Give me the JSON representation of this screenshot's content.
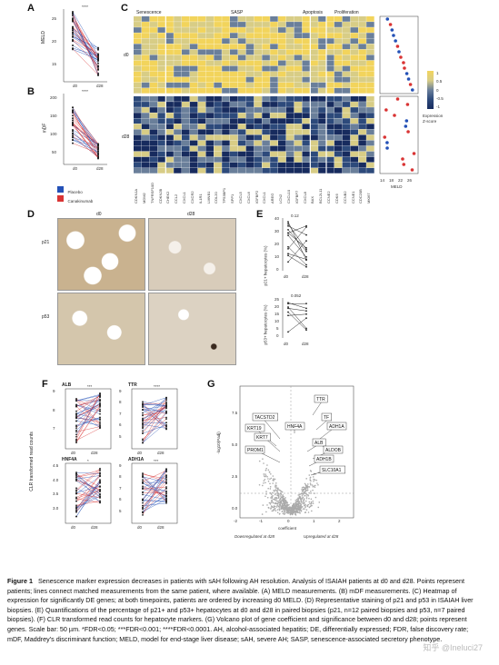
{
  "panel_labels": {
    "A": "A",
    "B": "B",
    "C": "C",
    "D": "D",
    "E": "E",
    "F": "F",
    "G": "G"
  },
  "panelA": {
    "ylabel": "MELD",
    "ticks": [
      "25",
      "20",
      "15"
    ],
    "x": [
      "d0",
      "d28"
    ],
    "sig": "****"
  },
  "panelB": {
    "ylabel": "mDF",
    "ticks": [
      "200",
      "150",
      "100",
      "50"
    ],
    "x": [
      "d0",
      "d28"
    ],
    "sig": "****"
  },
  "legend": {
    "placebo": "Placebo",
    "canakinumab": "Canakinumab",
    "placebo_color": "#2451b7",
    "cana_color": "#d93434"
  },
  "panelC": {
    "groups": [
      "Senescence",
      "SASP",
      "Apoptosis",
      "Proliferation"
    ],
    "rows": [
      "d0",
      "d28"
    ],
    "genes": [
      "CDKN1A",
      "MDM2",
      "TNFRSF10D",
      "CDKN2B",
      "CHEK2",
      "CCL2",
      "CXCL1",
      "CXCR2",
      "IL1R1",
      "LMNB1",
      "COL20",
      "TP53BP1",
      "SPP1",
      "CXCL5",
      "CXCL6",
      "IGFBP2",
      "CXCL1",
      "AREG",
      "LCN2",
      "CXCL10",
      "IGFBP7",
      "CXCL8",
      "BAX",
      "BCL2L11",
      "CCNE2",
      "CDK6",
      "CCNB2",
      "CCNE1",
      "CDC20B",
      "MKI67"
    ],
    "legend_title": "Expression\nZ-score",
    "legend_ticks": [
      "1",
      "0.5",
      "0",
      "-0.5",
      "-1"
    ],
    "meld_ticks": [
      "14",
      "18",
      "22",
      "26"
    ],
    "meld_label": "MELD"
  },
  "panelD": {
    "cols": [
      "d0",
      "d28"
    ],
    "rows": [
      "p21",
      "p53"
    ]
  },
  "panelE": {
    "top": {
      "ylabel": "p21+ hepatocytes (%)",
      "ticks": [
        "40",
        "30",
        "20",
        "10",
        "0"
      ],
      "p": "0.12"
    },
    "bottom": {
      "ylabel": "p53+ hepatocytes (%)",
      "ticks": [
        "25",
        "20",
        "15",
        "10",
        "5",
        "0"
      ],
      "p": "0.052"
    },
    "x": [
      "d0",
      "d28"
    ]
  },
  "panelF": {
    "ylabel": "CLR transformed read counts",
    "plots": [
      {
        "title": "ALB",
        "sig": "***",
        "ticks": [
          "9",
          "8",
          "7"
        ]
      },
      {
        "title": "TTR",
        "sig": "****",
        "ticks": [
          "9",
          "8",
          "7",
          "6",
          "5"
        ]
      },
      {
        "title": "HNF4A",
        "sig": "*",
        "ticks": [
          "4.5",
          "4.0",
          "3.5",
          "3.0"
        ]
      },
      {
        "title": "ADH1A",
        "sig": "***",
        "ticks": [
          "9",
          "8",
          "7",
          "6",
          "5"
        ]
      }
    ],
    "x": [
      "d0",
      "d28"
    ]
  },
  "panelG": {
    "ylabel": "-log10(Padj)",
    "xlabel": "coefficient",
    "yticks": [
      "7.5",
      "5.0",
      "2.5",
      "0.0"
    ],
    "xticks": [
      "-2",
      "-1",
      "0",
      "1",
      "2"
    ],
    "down": "Downregulated at d28",
    "up": "Upregulated at d28",
    "genes": [
      "TTR",
      "TF",
      "ADH1A",
      "HNF4A",
      "TACSTD2",
      "KRT19",
      "KRT7",
      "PROM1",
      "ALB",
      "ALDOB",
      "ADH1B",
      "SLC10A1"
    ]
  },
  "caption": {
    "lead": "Figure 1",
    "text": "Senescence marker expression decreases in patients with sAH following AH resolution. Analysis of ISAIAH patients at d0 and d28. Points represent patients; lines connect matched measurements from the same patient, where available. (A) MELD measurements. (B) mDF measurements. (C) Heatmap of expression for significantly DE genes; at both timepoints, patients are ordered by increasing d0 MELD. (D) Representative staining of p21 and p53 in ISAIAH liver biopsies. (E) Quantifications of the percentage of p21+ and p53+ hepatocytes at d0 and d28 in paired biopsies (p21, n=12 paired biopsies and p53, n=7 paired biopsies). (F) CLR transformed read counts for hepatocyte markers. (G) Volcano plot of gene coefficient and significance between d0 and d28; points represent genes. Scale bar: 50 µm. *FDR<0.05; ***FDR<0.001; ****FDR<0.0001. AH, alcohol-associated hepatitis; DE, differentially expressed; FDR, false discovery rate; mDF, Maddrey's discriminant function; MELD, model for end-stage liver disease; sAH, severe AH; SASP, senescence-associated secretory phenotype."
  },
  "watermark": "知乎 @Ineluci27"
}
